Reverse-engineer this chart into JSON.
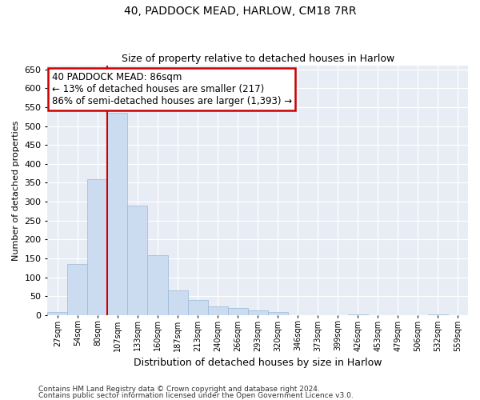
{
  "title1": "40, PADDOCK MEAD, HARLOW, CM18 7RR",
  "title2": "Size of property relative to detached houses in Harlow",
  "xlabel": "Distribution of detached houses by size in Harlow",
  "ylabel": "Number of detached properties",
  "categories": [
    "27sqm",
    "54sqm",
    "80sqm",
    "107sqm",
    "133sqm",
    "160sqm",
    "187sqm",
    "213sqm",
    "240sqm",
    "266sqm",
    "293sqm",
    "320sqm",
    "346sqm",
    "373sqm",
    "399sqm",
    "426sqm",
    "453sqm",
    "479sqm",
    "506sqm",
    "532sqm",
    "559sqm"
  ],
  "values": [
    8,
    135,
    360,
    535,
    290,
    158,
    65,
    40,
    22,
    18,
    12,
    7,
    0,
    0,
    0,
    2,
    0,
    0,
    0,
    2,
    0
  ],
  "bar_color": "#ccdcf0",
  "bar_edge_color": "#9ab8d8",
  "vline_x": 2.5,
  "annotation_text": "40 PADDOCK MEAD: 86sqm\n← 13% of detached houses are smaller (217)\n86% of semi-detached houses are larger (1,393) →",
  "annotation_box_color": "white",
  "annotation_box_edge_color": "#cc0000",
  "vline_color": "#cc0000",
  "ylim": [
    0,
    660
  ],
  "yticks": [
    0,
    50,
    100,
    150,
    200,
    250,
    300,
    350,
    400,
    450,
    500,
    550,
    600,
    650
  ],
  "background_color": "#e8edf5",
  "grid_color": "#ffffff",
  "footer1": "Contains HM Land Registry data © Crown copyright and database right 2024.",
  "footer2": "Contains public sector information licensed under the Open Government Licence v3.0."
}
